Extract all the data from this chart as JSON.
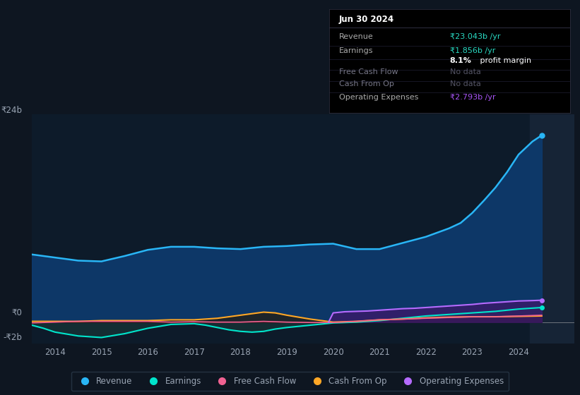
{
  "bg_color": "#0e1621",
  "plot_bg_color": "#0d1b2a",
  "text_color": "#9aa5b4",
  "white": "#ffffff",
  "title_box": {
    "date": "Jun 30 2024",
    "revenue_label": "Revenue",
    "revenue_value": "₹23.043b",
    "revenue_suffix": " /yr",
    "revenue_color": "#29d9c2",
    "earnings_label": "Earnings",
    "earnings_value": "₹1.856b",
    "earnings_suffix": " /yr",
    "earnings_color": "#29d9c2",
    "margin_pct": "8.1%",
    "margin_text": " profit margin",
    "fcf_label": "Free Cash Flow",
    "fcf_value": "No data",
    "cashop_label": "Cash From Op",
    "cashop_value": "No data",
    "opex_label": "Operating Expenses",
    "opex_value": "₹2.793b",
    "opex_suffix": " /yr",
    "opex_color": "#a855f7"
  },
  "ylim": [
    -2.8,
    27.0
  ],
  "xlim": [
    2013.5,
    2025.2
  ],
  "xticks": [
    2014,
    2015,
    2016,
    2017,
    2018,
    2019,
    2020,
    2021,
    2022,
    2023,
    2024
  ],
  "y0_label": "₹0",
  "y24_label": "₹24b",
  "ym2_label": "-₹2b",
  "series": {
    "revenue": {
      "color": "#29b6f6",
      "label": "Revenue",
      "fill_color": "#0d3b6e",
      "fill_alpha": 0.9
    },
    "earnings": {
      "color": "#00e5cc",
      "label": "Earnings",
      "fill_color": "#1a3a3a",
      "fill_alpha": 0.6
    },
    "fcf": {
      "color": "#f06292",
      "label": "Free Cash Flow",
      "fill_color": "#3a1020",
      "fill_alpha": 0.5
    },
    "cashop": {
      "color": "#ffa726",
      "label": "Cash From Op",
      "fill_color": "#2a1800",
      "fill_alpha": 0.6
    },
    "opex": {
      "color": "#b56bff",
      "label": "Operating Expenses",
      "fill_color": "#3a1a6a",
      "fill_alpha": 0.8
    }
  },
  "revenue_x": [
    2013.5,
    2013.75,
    2014.0,
    2014.5,
    2015.0,
    2015.5,
    2016.0,
    2016.5,
    2017.0,
    2017.5,
    2018.0,
    2018.5,
    2019.0,
    2019.5,
    2020.0,
    2020.5,
    2021.0,
    2021.5,
    2022.0,
    2022.5,
    2022.75,
    2023.0,
    2023.25,
    2023.5,
    2023.75,
    2024.0,
    2024.3,
    2024.5
  ],
  "revenue_y": [
    8.8,
    8.6,
    8.4,
    8.0,
    7.9,
    8.6,
    9.4,
    9.8,
    9.8,
    9.6,
    9.5,
    9.8,
    9.9,
    10.1,
    10.2,
    9.5,
    9.5,
    10.3,
    11.1,
    12.2,
    12.9,
    14.2,
    15.8,
    17.5,
    19.5,
    21.8,
    23.5,
    24.3
  ],
  "earnings_x": [
    2013.5,
    2013.75,
    2014.0,
    2014.5,
    2015.0,
    2015.5,
    2016.0,
    2016.5,
    2017.0,
    2017.25,
    2017.5,
    2017.75,
    2018.0,
    2018.25,
    2018.5,
    2018.75,
    2019.0,
    2019.5,
    2020.0,
    2020.5,
    2021.0,
    2021.5,
    2022.0,
    2022.5,
    2023.0,
    2023.5,
    2024.0,
    2024.5
  ],
  "earnings_y": [
    -0.4,
    -0.8,
    -1.3,
    -1.8,
    -2.0,
    -1.5,
    -0.8,
    -0.3,
    -0.2,
    -0.4,
    -0.7,
    -1.0,
    -1.2,
    -1.3,
    -1.2,
    -0.9,
    -0.7,
    -0.4,
    -0.1,
    0.0,
    0.2,
    0.5,
    0.8,
    1.0,
    1.2,
    1.4,
    1.7,
    1.9
  ],
  "fcf_x": [
    2013.5,
    2014.0,
    2014.5,
    2015.0,
    2015.5,
    2016.0,
    2016.5,
    2017.0,
    2017.5,
    2018.0,
    2018.5,
    2019.0,
    2019.5,
    2020.0,
    2020.5,
    2021.0,
    2021.5,
    2022.0,
    2022.5,
    2023.0,
    2023.5,
    2024.0,
    2024.5
  ],
  "fcf_y": [
    -0.1,
    0.0,
    0.1,
    0.1,
    0.1,
    0.1,
    0.0,
    0.05,
    0.0,
    0.0,
    0.1,
    0.0,
    -0.05,
    -0.05,
    0.1,
    0.3,
    0.4,
    0.5,
    0.6,
    0.7,
    0.7,
    0.8,
    0.9
  ],
  "cashop_x": [
    2013.5,
    2014.0,
    2014.5,
    2015.0,
    2015.5,
    2016.0,
    2016.5,
    2017.0,
    2017.5,
    2018.0,
    2018.25,
    2018.5,
    2018.75,
    2019.0,
    2019.5,
    2020.0,
    2020.5,
    2021.0,
    2021.5,
    2022.0,
    2022.5,
    2023.0,
    2023.5,
    2024.0,
    2024.5
  ],
  "cashop_y": [
    0.1,
    0.1,
    0.1,
    0.2,
    0.2,
    0.2,
    0.3,
    0.3,
    0.5,
    0.9,
    1.1,
    1.3,
    1.2,
    0.9,
    0.4,
    0.0,
    0.1,
    0.3,
    0.4,
    0.55,
    0.65,
    0.7,
    0.7,
    0.75,
    0.8
  ],
  "opex_x": [
    2019.9,
    2020.0,
    2020.25,
    2020.5,
    2020.75,
    2021.0,
    2021.25,
    2021.5,
    2021.75,
    2022.0,
    2022.25,
    2022.5,
    2022.75,
    2023.0,
    2023.25,
    2023.5,
    2023.75,
    2024.0,
    2024.3,
    2024.5
  ],
  "opex_y": [
    0.0,
    1.2,
    1.35,
    1.4,
    1.45,
    1.55,
    1.65,
    1.75,
    1.8,
    1.9,
    2.0,
    2.1,
    2.2,
    2.3,
    2.45,
    2.55,
    2.65,
    2.75,
    2.8,
    2.85
  ],
  "highlight_x_start": 2024.25,
  "highlight_color": "#162436"
}
